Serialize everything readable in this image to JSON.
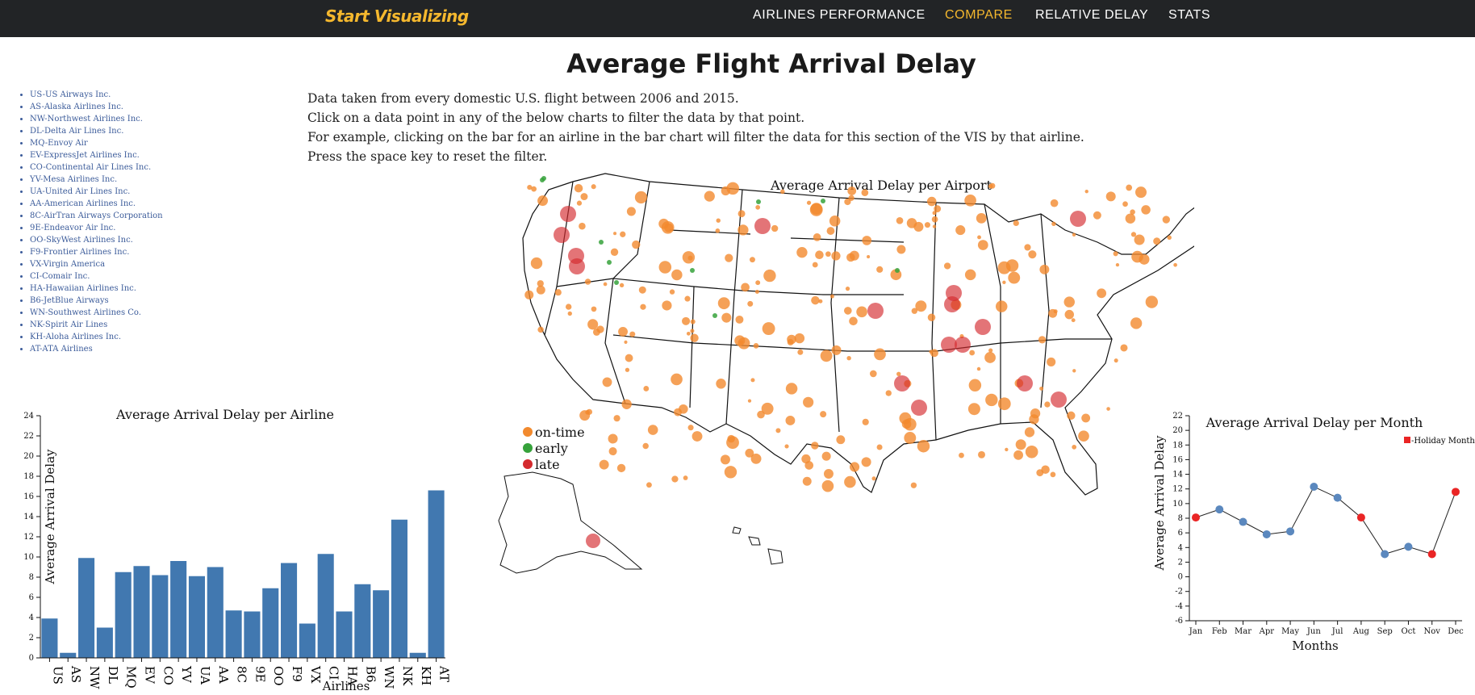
{
  "brand": "Start Visualizing",
  "nav": [
    {
      "label": "AIRLINES PERFORMANCE",
      "active": false
    },
    {
      "label": "COMPARE",
      "active": true
    },
    {
      "label": "RELATIVE DELAY",
      "active": false
    },
    {
      "label": "STATS",
      "active": false
    }
  ],
  "page_title": "Average Flight Arrival Delay",
  "intro": [
    "Data taken from every domestic U.S. flight between 2006 and 2015.",
    "Click on a data point in any of the below charts to filter the data by that point.",
    "For example, clicking on the bar for an airline in the bar chart will filter the data for this section of the VIS by that airline.",
    "Press the space key to reset the filter."
  ],
  "airlines": [
    "US-US Airways Inc.",
    "AS-Alaska Airlines Inc.",
    "NW-Northwest Airlines Inc.",
    "DL-Delta Air Lines Inc.",
    "MQ-Envoy Air",
    "EV-ExpressJet Airlines Inc.",
    "CO-Continental Air Lines Inc.",
    "YV-Mesa Airlines Inc.",
    "UA-United Air Lines Inc.",
    "AA-American Airlines Inc.",
    "8C-AirTran Airways Corporation",
    "9E-Endeavor Air Inc.",
    "OO-SkyWest Airlines Inc.",
    "F9-Frontier Airlines Inc.",
    "VX-Virgin America",
    "CI-Comair Inc.",
    "HA-Hawaiian Airlines Inc.",
    "B6-JetBlue Airways",
    "WN-Southwest Airlines Co.",
    "NK-Spirit Air Lines",
    "KH-Aloha Airlines Inc.",
    "AT-ATA Airlines"
  ],
  "colors": {
    "bar": "#4178b0",
    "ontime": "#f28a2e",
    "early": "#36a23b",
    "late": "#d42a2e",
    "point": "#5b88be",
    "holiday": "#ea2525"
  },
  "chart_data": [
    {
      "type": "bar",
      "title": "Average Arrival Delay per Airline",
      "xlabel": "Airlines",
      "ylabel": "Average Arrival Delay",
      "ylim": [
        0,
        24
      ],
      "yticks": [
        0,
        2,
        4,
        6,
        8,
        10,
        12,
        14,
        16,
        18,
        20,
        22,
        24
      ],
      "categories": [
        "US",
        "AS",
        "NW",
        "DL",
        "MQ",
        "EV",
        "CO",
        "YV",
        "UA",
        "AA",
        "8C",
        "9E",
        "OO",
        "F9",
        "VX",
        "CI",
        "HA",
        "B6",
        "WN",
        "NK",
        "KH",
        "AT"
      ],
      "values": [
        3.9,
        0.5,
        9.9,
        3.0,
        8.5,
        9.1,
        8.2,
        9.6,
        8.1,
        9.0,
        4.7,
        4.6,
        6.9,
        9.4,
        3.4,
        10.3,
        4.6,
        7.3,
        6.7,
        13.7,
        0.5,
        16.6
      ]
    },
    {
      "type": "scatter",
      "title": "Average Arrival Delay per Airport",
      "legend": [
        {
          "label": "on-time",
          "color": "#f28a2e"
        },
        {
          "label": "early",
          "color": "#36a23b"
        },
        {
          "label": "late",
          "color": "#d42a2e"
        }
      ],
      "legend_position": "left"
    },
    {
      "type": "line",
      "title": "Average Arrival Delay per Month",
      "xlabel": "Months",
      "ylabel": "Average Arrival Delay",
      "ylim": [
        -6,
        22
      ],
      "yticks": [
        -6,
        -4,
        -2,
        0,
        2,
        4,
        6,
        8,
        10,
        12,
        14,
        16,
        18,
        20,
        22
      ],
      "categories": [
        "Jan",
        "Feb",
        "Mar",
        "Apr",
        "May",
        "Jun",
        "Jul",
        "Aug",
        "Sep",
        "Oct",
        "Nov",
        "Dec"
      ],
      "values": [
        8.1,
        9.2,
        7.5,
        5.8,
        6.2,
        12.3,
        10.8,
        8.1,
        3.1,
        4.1,
        3.1,
        11.6
      ],
      "holiday": [
        true,
        false,
        false,
        false,
        false,
        false,
        false,
        true,
        false,
        false,
        true,
        true
      ],
      "legend_label": "-Holiday Month",
      "legend_position": "top-right"
    }
  ]
}
